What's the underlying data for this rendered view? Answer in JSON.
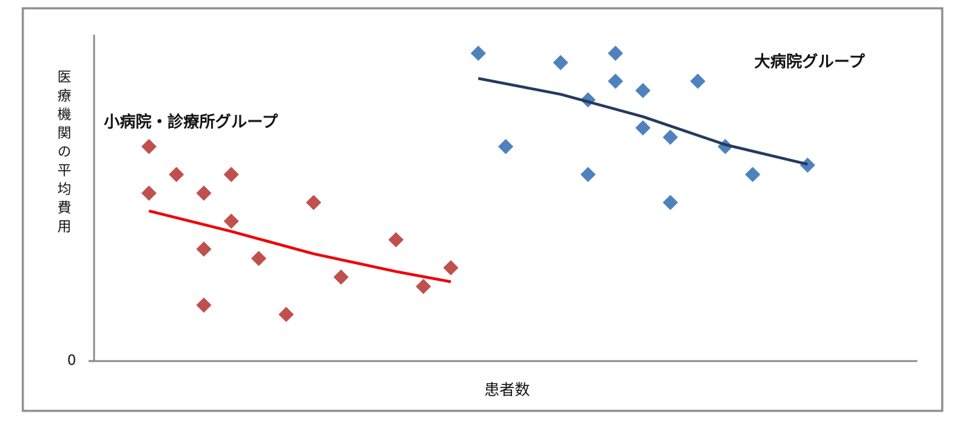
{
  "chart_data": {
    "type": "scatter",
    "ylabel": "医療機関の平均費用",
    "xlabel": "患者数",
    "xlim": [
      0,
      30
    ],
    "ylim": [
      0,
      35
    ],
    "yticks": [
      0
    ],
    "grid": false,
    "series": [
      {
        "name": "小病院・診療所グループ",
        "color": "#c0504d",
        "label_color": "#e60000",
        "x": [
          2,
          2,
          3,
          4,
          4,
          4,
          5,
          5,
          6,
          7,
          8,
          9,
          11,
          12,
          13
        ],
        "values": [
          23,
          18,
          20,
          18,
          12,
          6,
          20,
          15,
          11,
          5,
          17,
          9,
          13,
          8,
          10
        ],
        "trend_color": "#ee0000",
        "trend_x": [
          2,
          5,
          8,
          11,
          13
        ],
        "trend_values": [
          16.1,
          13.9,
          11.5,
          9.6,
          8.5
        ]
      },
      {
        "name": "大病院グループ",
        "color": "#4f81bd",
        "label_color": "#1f3050",
        "x": [
          14,
          15,
          17,
          18,
          18,
          19,
          19,
          20,
          20,
          21,
          21,
          22,
          23,
          24,
          26
        ],
        "values": [
          33,
          23,
          32,
          28,
          20,
          33,
          30,
          29,
          25,
          24,
          17,
          30,
          23,
          20,
          21
        ],
        "trend_color": "#243a5e",
        "trend_x": [
          14,
          17,
          20,
          23,
          26
        ],
        "trend_values": [
          30.3,
          28.6,
          26.2,
          23.2,
          21.1
        ]
      }
    ]
  }
}
